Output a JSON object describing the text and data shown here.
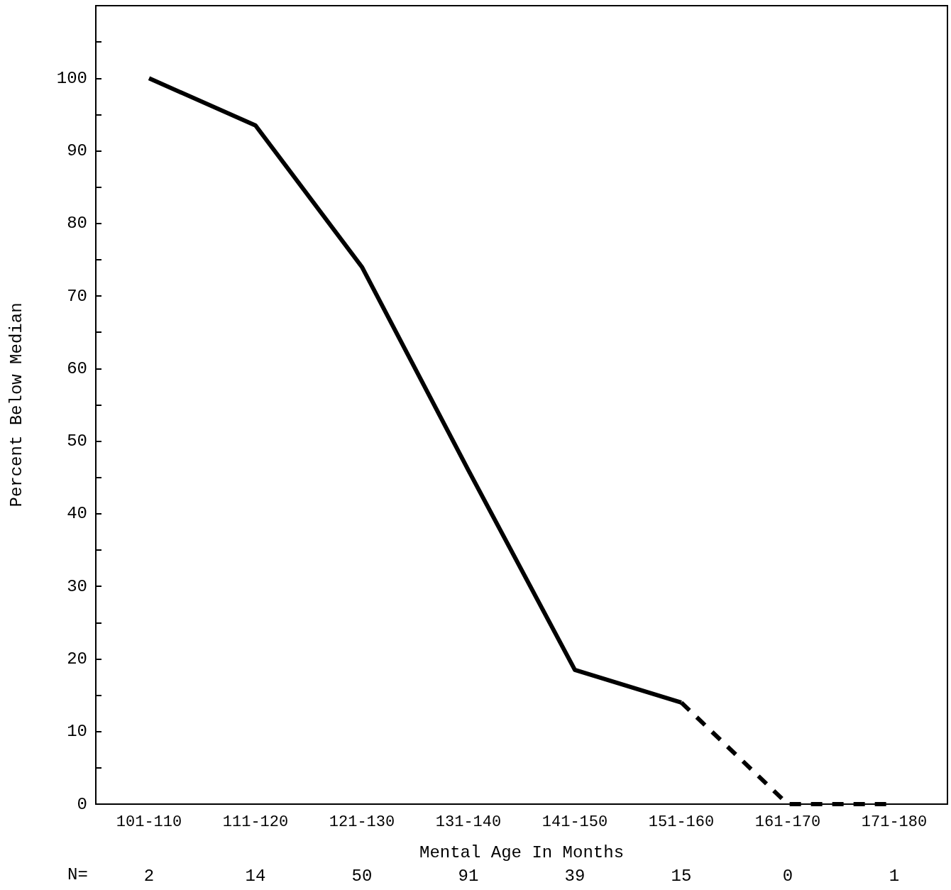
{
  "chart_data": {
    "type": "line",
    "xlabel": "Mental Age In Months",
    "ylabel": "Percent Below Median",
    "categories": [
      "101-110",
      "111-120",
      "121-130",
      "131-140",
      "141-150",
      "151-160",
      "161-170",
      "171-180"
    ],
    "series": [
      {
        "color": "#000000",
        "line_style": "solid",
        "values": [
          100,
          93.5,
          74,
          46,
          18.5,
          14,
          null,
          null
        ]
      },
      {
        "color": "#000000",
        "line_style": "dashed",
        "values": [
          null,
          null,
          null,
          null,
          null,
          14,
          0,
          0
        ]
      }
    ],
    "ylim": [
      0,
      110
    ],
    "yticks": [
      0,
      {
        "value": 5,
        "label": null
      },
      10,
      {
        "value": 15,
        "label": null
      },
      20,
      {
        "value": 25,
        "label": null
      },
      30,
      {
        "value": 35,
        "label": null
      },
      40,
      {
        "value": 45,
        "label": null
      },
      50,
      {
        "value": 55,
        "label": null
      },
      60,
      {
        "value": 65,
        "label": null
      },
      70,
      {
        "value": 75,
        "label": null
      },
      80,
      {
        "value": 85,
        "label": null
      },
      90,
      {
        "value": 95,
        "label": null
      },
      100,
      {
        "value": 105,
        "label": null
      }
    ],
    "annotations": [
      "N=",
      "2",
      "14",
      "50",
      "91",
      "39",
      "15",
      "0",
      "1"
    ],
    "grid": false,
    "marker": "none"
  }
}
